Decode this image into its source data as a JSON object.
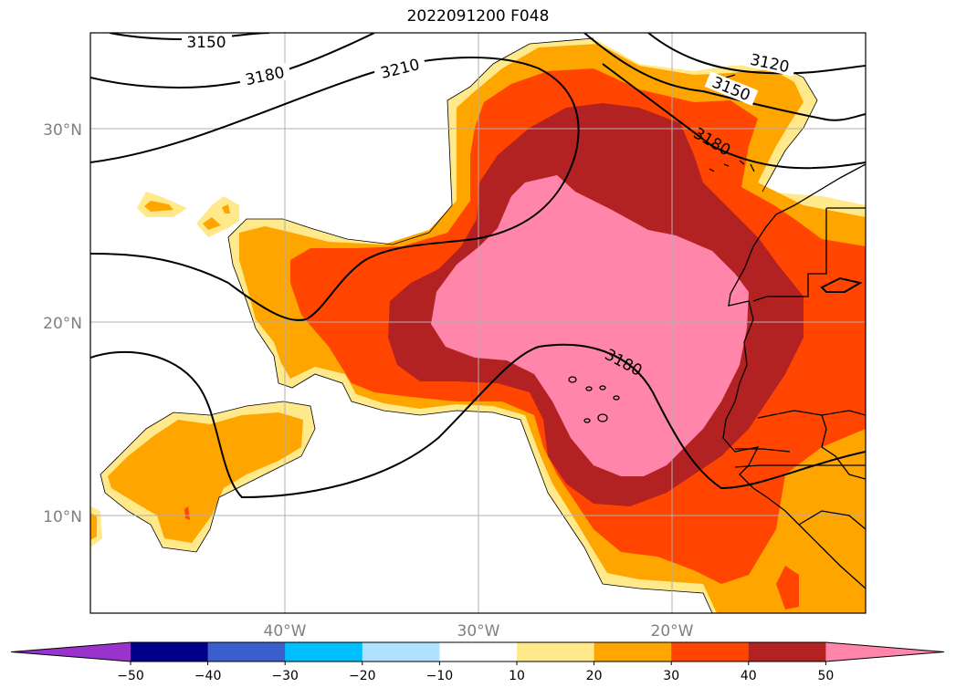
{
  "title": "2022091200 F048",
  "latitude_labels": [
    "30°N",
    "20°N",
    "10°N"
  ],
  "longitude_labels": [
    "40°W",
    "30°W",
    "20°W"
  ],
  "contour_labels": [
    "3150",
    "3180",
    "3210",
    "3120",
    "3150",
    "3180",
    "3180"
  ],
  "colorbar": {
    "ticks": [
      "−50",
      "−40",
      "−30",
      "−20",
      "−10",
      "10",
      "20",
      "30",
      "40",
      "50"
    ],
    "colors": [
      "#9933cc",
      "#00008b",
      "#3a5fcd",
      "#00bfff",
      "#b0e2ff",
      "#ffffff",
      "#ffe98a",
      "#ffa500",
      "#ff4500",
      "#b22222",
      "#ff85aa"
    ]
  }
}
